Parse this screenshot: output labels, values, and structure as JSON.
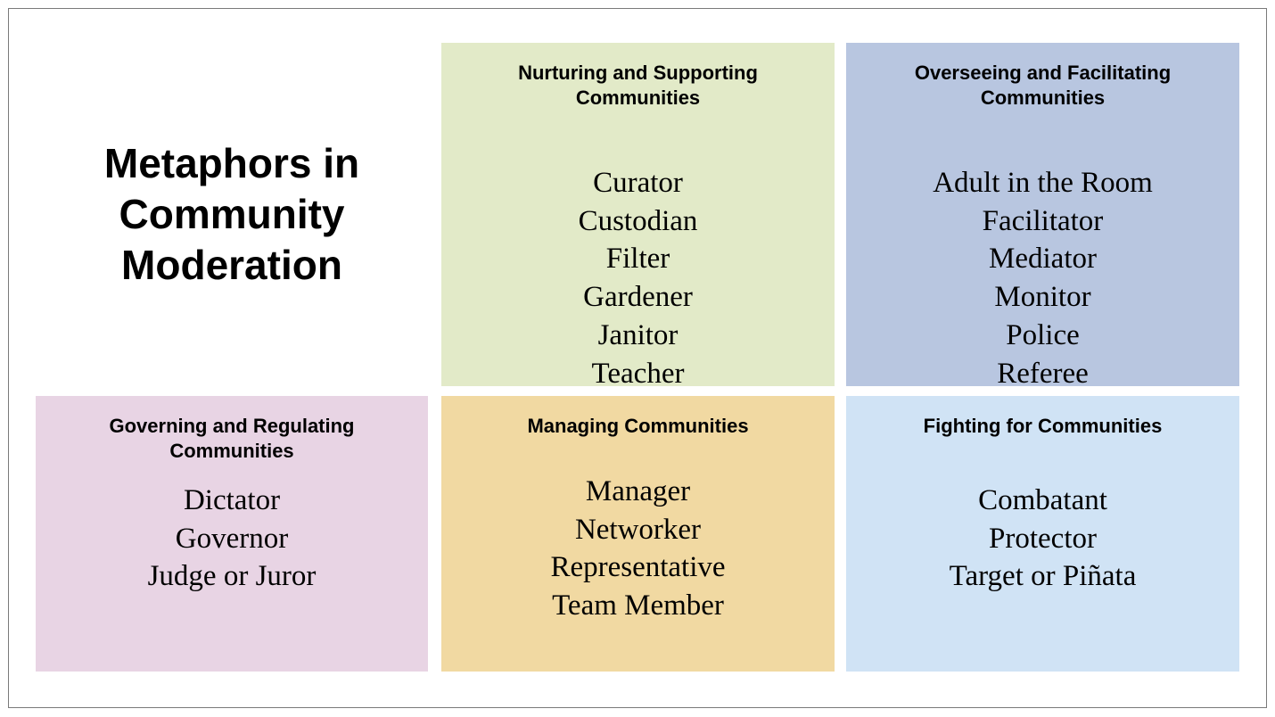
{
  "title": {
    "line1": "Metaphors in",
    "line2": "Community",
    "line3": "Moderation"
  },
  "categories": [
    {
      "header_lines": [
        "Nurturing and Supporting",
        "Communities"
      ],
      "items": [
        "Curator",
        "Custodian",
        "Filter",
        "Gardener",
        "Janitor",
        "Teacher"
      ],
      "color": "#e2eac8"
    },
    {
      "header_lines": [
        "Overseeing and Facilitating",
        "Communities"
      ],
      "items": [
        "Adult in the Room",
        "Facilitator",
        "Mediator",
        "Monitor",
        "Police",
        "Referee"
      ],
      "color": "#b8c6e0"
    },
    {
      "header_lines": [
        "Governing and Regulating",
        "Communities"
      ],
      "items": [
        "Dictator",
        "Governor",
        "Judge or Juror"
      ],
      "color": "#e8d4e4"
    },
    {
      "header_lines": [
        "Managing Communities"
      ],
      "items": [
        "Manager",
        "Networker",
        "Representative",
        "Team Member"
      ],
      "color": "#f1d9a2"
    },
    {
      "header_lines": [
        "Fighting for Communities"
      ],
      "items": [
        "Combatant",
        "Protector",
        "Target or Piñata"
      ],
      "color": "#d0e3f5"
    }
  ]
}
